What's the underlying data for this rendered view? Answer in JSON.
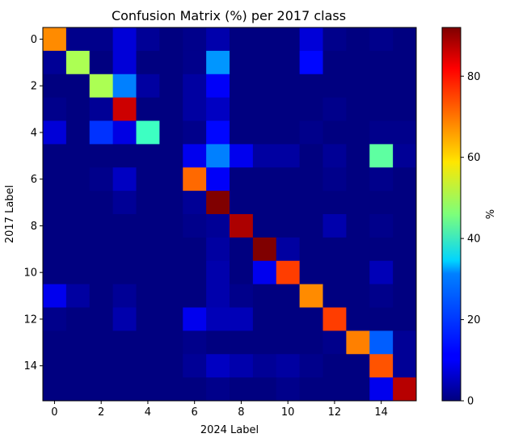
{
  "chart_data": {
    "type": "heatmap",
    "title": "Confusion Matrix (%) per 2017 class",
    "xlabel": "2024 Label",
    "ylabel": "2017 Label",
    "x_ticks": [
      "0",
      "2",
      "4",
      "6",
      "8",
      "10",
      "12",
      "14"
    ],
    "y_ticks": [
      "0",
      "2",
      "4",
      "6",
      "8",
      "10",
      "12",
      "14"
    ],
    "colorbar": {
      "label": "%",
      "ticks": [
        "0",
        "20",
        "40",
        "60",
        "80"
      ],
      "range": [
        0,
        92
      ],
      "colormap": "jet"
    },
    "matrix": [
      [
        68,
        1,
        1,
        8,
        2,
        0,
        1,
        4,
        0,
        0,
        0,
        8,
        1,
        0,
        1,
        0
      ],
      [
        2,
        50,
        0,
        8,
        0,
        0,
        1,
        25,
        0,
        0,
        0,
        12,
        0,
        0,
        0,
        0
      ],
      [
        0,
        0,
        50,
        23,
        3,
        0,
        3,
        11,
        0,
        0,
        0,
        0,
        0,
        0,
        0,
        0
      ],
      [
        1,
        0,
        2,
        85,
        0,
        0,
        3,
        6,
        0,
        0,
        0,
        0,
        1,
        0,
        0,
        0
      ],
      [
        8,
        0,
        16,
        9,
        40,
        0,
        1,
        12,
        0,
        0,
        0,
        1,
        0,
        0,
        1,
        1
      ],
      [
        0,
        0,
        0,
        0,
        0,
        0,
        10,
        23,
        10,
        3,
        3,
        0,
        2,
        0,
        43,
        2
      ],
      [
        0,
        0,
        1,
        6,
        0,
        0,
        71,
        11,
        0,
        0,
        0,
        0,
        1,
        0,
        1,
        0
      ],
      [
        0,
        0,
        0,
        2,
        0,
        0,
        2,
        92,
        0,
        0,
        0,
        0,
        0,
        0,
        0,
        0
      ],
      [
        0,
        0,
        0,
        0,
        0,
        0,
        1,
        2,
        88,
        0,
        0,
        0,
        4,
        0,
        1,
        0
      ],
      [
        0,
        0,
        0,
        0,
        0,
        0,
        0,
        3,
        0,
        92,
        3,
        0,
        0,
        0,
        0,
        0
      ],
      [
        0,
        0,
        0,
        0,
        0,
        0,
        0,
        4,
        0,
        10,
        75,
        0,
        0,
        0,
        5,
        0
      ],
      [
        10,
        3,
        0,
        2,
        0,
        0,
        0,
        4,
        1,
        0,
        0,
        68,
        0,
        0,
        1,
        0
      ],
      [
        1,
        0,
        0,
        4,
        0,
        0,
        10,
        5,
        5,
        0,
        0,
        0,
        75,
        0,
        0,
        0
      ],
      [
        0,
        0,
        0,
        0,
        0,
        0,
        1,
        0,
        0,
        0,
        0,
        0,
        1,
        69,
        20,
        2
      ],
      [
        0,
        0,
        0,
        0,
        0,
        0,
        2,
        6,
        4,
        2,
        3,
        1,
        0,
        0,
        73,
        2
      ],
      [
        0,
        0,
        0,
        0,
        0,
        0,
        0,
        1,
        0,
        0,
        1,
        0,
        0,
        0,
        10,
        87
      ]
    ]
  }
}
